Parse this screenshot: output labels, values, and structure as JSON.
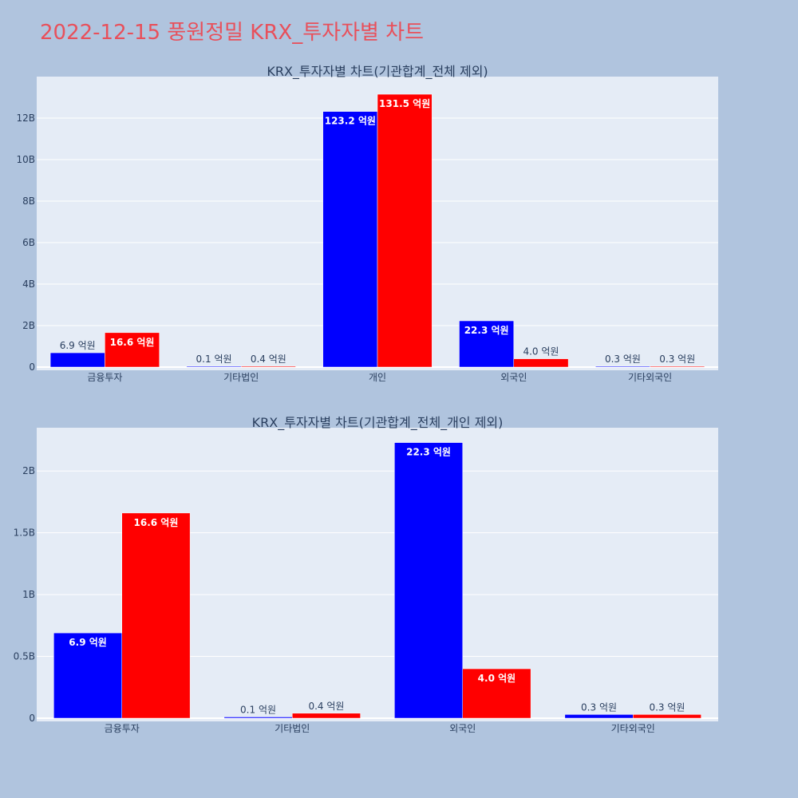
{
  "page": {
    "title": "2022-12-15 풍원정밀 KRX_투자자별 차트",
    "title_color": "#e8505b",
    "background": "#b0c4de",
    "plot_background": "#e5ecf6"
  },
  "chart_data": [
    {
      "type": "bar",
      "title": "KRX_투자자별 차트(기관합계_전체 제외)",
      "categories": [
        "금융투자",
        "기타법인",
        "개인",
        "외국인",
        "기타외국인"
      ],
      "series": [
        {
          "color": "#0000ff",
          "values": [
            690000000,
            10000000,
            12320000000,
            2230000000,
            30000000
          ],
          "labels": [
            "6.9 억원",
            "0.1 억원",
            "123.2 억원",
            "22.3 억원",
            "0.3 억원"
          ]
        },
        {
          "color": "#ff0000",
          "values": [
            1660000000,
            40000000,
            13150000000,
            400000000,
            30000000
          ],
          "labels": [
            "16.6 억원",
            "0.4 억원",
            "131.5 억원",
            "4.0 억원",
            "0.3 억원"
          ]
        }
      ],
      "yticks": [
        0,
        2000000000,
        4000000000,
        6000000000,
        8000000000,
        10000000000,
        12000000000
      ],
      "ytick_labels": [
        "0",
        "2B",
        "4B",
        "6B",
        "8B",
        "10B",
        "12B"
      ],
      "ylim": [
        0,
        14000000000
      ],
      "grid": true
    },
    {
      "type": "bar",
      "title": "KRX_투자자별 차트(기관합계_전체_개인 제외)",
      "categories": [
        "금융투자",
        "기타법인",
        "외국인",
        "기타외국인"
      ],
      "series": [
        {
          "color": "#0000ff",
          "values": [
            690000000,
            10000000,
            2230000000,
            30000000
          ],
          "labels": [
            "6.9 억원",
            "0.1 억원",
            "22.3 억원",
            "0.3 억원"
          ]
        },
        {
          "color": "#ff0000",
          "values": [
            1660000000,
            40000000,
            400000000,
            30000000
          ],
          "labels": [
            "16.6 억원",
            "0.4 억원",
            "4.0 억원",
            "0.3 억원"
          ]
        }
      ],
      "yticks": [
        0,
        500000000,
        1000000000,
        1500000000,
        2000000000
      ],
      "ytick_labels": [
        "0",
        "0.5B",
        "1B",
        "1.5B",
        "2B"
      ],
      "ylim": [
        0,
        2350000000
      ],
      "grid": true
    }
  ]
}
